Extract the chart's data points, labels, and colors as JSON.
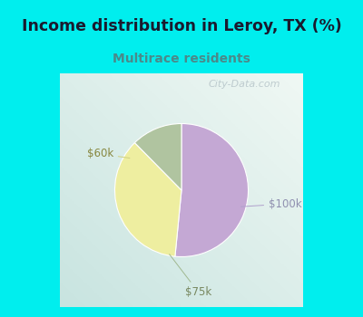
{
  "title": "Income distribution in Leroy, TX (%)",
  "subtitle": "Multirace residents",
  "title_color": "#1a1a2e",
  "subtitle_color": "#4a8a8a",
  "bg_color": "#00EEEE",
  "panel_color": "#f0f8f4",
  "slices": [
    {
      "label": "$100k",
      "value": 50,
      "color": "#C4A8D4"
    },
    {
      "label": "$60k",
      "value": 35,
      "color": "#EEEEA0"
    },
    {
      "label": "$75k",
      "value": 12,
      "color": "#B0C4A0"
    }
  ],
  "startangle": 90,
  "counterclock": false,
  "watermark": "City-Data.com",
  "figsize": [
    4.0,
    3.5
  ],
  "dpi": 100,
  "label_colors": [
    "#9090b0",
    "#888840",
    "#788860"
  ],
  "line_colors": [
    "#b0a0cc",
    "#d0d080",
    "#a0b890"
  ],
  "border_color": "#00EEEE",
  "border_width": 8
}
